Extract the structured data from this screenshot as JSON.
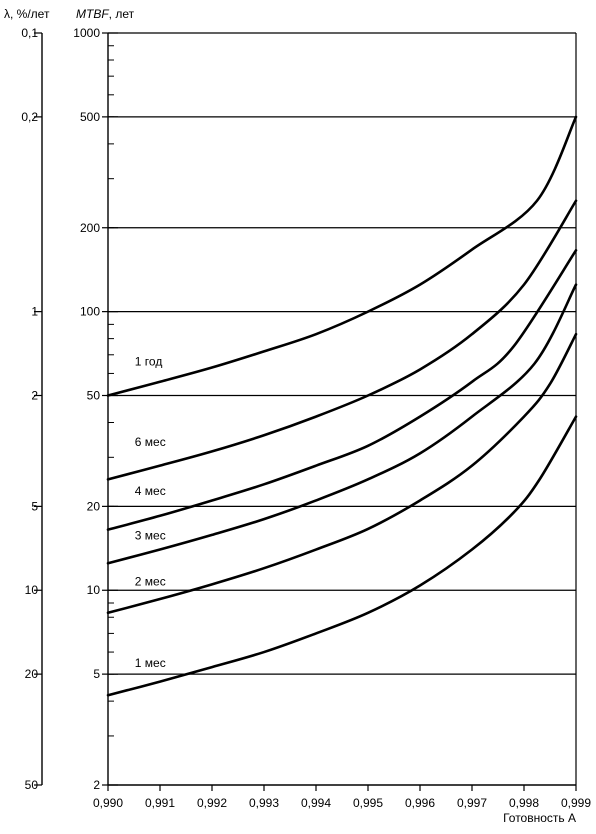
{
  "chart_data": {
    "type": "line",
    "x_label": "Готовность A",
    "x_ticks": [
      "0,990",
      "0,991",
      "0,992",
      "0,993",
      "0,994",
      "0,995",
      "0,996",
      "0,997",
      "0,998",
      "0,999"
    ],
    "x_tick_values": [
      0.99,
      0.991,
      0.992,
      0.993,
      0.994,
      0.995,
      0.996,
      0.997,
      0.998,
      0.999
    ],
    "xlim": [
      0.99,
      0.999
    ],
    "y_label_italic": "MTBF",
    "y_label_suffix": ", лет",
    "y_scale": "log",
    "ylim": [
      2,
      1000
    ],
    "y_ticks": [
      "1000",
      "500",
      "200",
      "100",
      "50",
      "20",
      "10",
      "5",
      "2"
    ],
    "y_tick_values": [
      1000,
      500,
      200,
      100,
      50,
      20,
      10,
      5,
      2
    ],
    "gridlines_y": [
      500,
      200,
      100,
      50,
      20,
      10,
      5
    ],
    "secondary_axis": {
      "label": "λ, %/лет",
      "ticks": [
        "0,1",
        "0,2",
        "1",
        "2",
        "5",
        "10",
        "20",
        "50"
      ],
      "tick_values": [
        0.1,
        0.2,
        1,
        2,
        5,
        10,
        20,
        50
      ]
    },
    "series": [
      {
        "name": "1 год",
        "points": [
          [
            0.99,
            50
          ],
          [
            0.991,
            56
          ],
          [
            0.992,
            63
          ],
          [
            0.993,
            72
          ],
          [
            0.994,
            83
          ],
          [
            0.995,
            100
          ],
          [
            0.996,
            125
          ],
          [
            0.997,
            167
          ],
          [
            0.99825,
            250
          ],
          [
            0.999,
            500
          ]
        ]
      },
      {
        "name": "6 мес",
        "points": [
          [
            0.99,
            25
          ],
          [
            0.991,
            28
          ],
          [
            0.992,
            31.5
          ],
          [
            0.993,
            36
          ],
          [
            0.994,
            42
          ],
          [
            0.995,
            50
          ],
          [
            0.996,
            62
          ],
          [
            0.997,
            83
          ],
          [
            0.998,
            125
          ],
          [
            0.999,
            250
          ]
        ]
      },
      {
        "name": "4 мес",
        "points": [
          [
            0.99,
            16.5
          ],
          [
            0.991,
            18.5
          ],
          [
            0.992,
            21
          ],
          [
            0.993,
            24
          ],
          [
            0.994,
            28
          ],
          [
            0.995,
            33
          ],
          [
            0.996,
            42
          ],
          [
            0.997,
            56
          ],
          [
            0.9978,
            75
          ],
          [
            0.999,
            166
          ]
        ]
      },
      {
        "name": "3 мес",
        "points": [
          [
            0.99,
            12.5
          ],
          [
            0.991,
            14
          ],
          [
            0.992,
            15.8
          ],
          [
            0.993,
            18
          ],
          [
            0.994,
            21
          ],
          [
            0.995,
            25
          ],
          [
            0.996,
            31
          ],
          [
            0.997,
            42
          ],
          [
            0.9982,
            65
          ],
          [
            0.999,
            125
          ]
        ]
      },
      {
        "name": "2 мес",
        "points": [
          [
            0.99,
            8.3
          ],
          [
            0.991,
            9.3
          ],
          [
            0.992,
            10.5
          ],
          [
            0.993,
            12
          ],
          [
            0.994,
            14
          ],
          [
            0.995,
            16.6
          ],
          [
            0.996,
            21
          ],
          [
            0.997,
            28
          ],
          [
            0.998,
            42
          ],
          [
            0.9985,
            55
          ],
          [
            0.999,
            83
          ]
        ]
      },
      {
        "name": "1 мес",
        "points": [
          [
            0.99,
            4.2
          ],
          [
            0.991,
            4.7
          ],
          [
            0.992,
            5.3
          ],
          [
            0.993,
            6
          ],
          [
            0.994,
            7
          ],
          [
            0.995,
            8.3
          ],
          [
            0.996,
            10.4
          ],
          [
            0.997,
            14
          ],
          [
            0.9978,
            19
          ],
          [
            0.9983,
            25
          ],
          [
            0.999,
            42
          ]
        ]
      }
    ],
    "label_anchors": [
      {
        "series": "1 год",
        "x": 0.9904,
        "y": 64
      },
      {
        "series": "6 мес",
        "x": 0.9904,
        "y": 33
      },
      {
        "series": "4 мес",
        "x": 0.9904,
        "y": 22
      },
      {
        "series": "3 мес",
        "x": 0.9904,
        "y": 15.2
      },
      {
        "series": "2 мес",
        "x": 0.9904,
        "y": 10.4
      },
      {
        "series": "1 мес",
        "x": 0.9904,
        "y": 5.3
      }
    ]
  }
}
